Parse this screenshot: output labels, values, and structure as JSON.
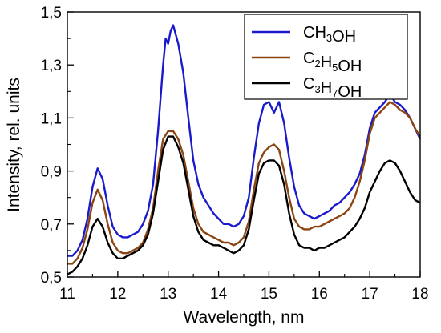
{
  "chart_data": {
    "type": "line",
    "xlabel": "Wavelength, nm",
    "ylabel": "Intensity, rel. units",
    "xlim": [
      11,
      18
    ],
    "ylim": [
      0.5,
      1.5
    ],
    "x_ticks": [
      "11",
      "12",
      "13",
      "14",
      "15",
      "16",
      "17",
      "18"
    ],
    "y_ticks": [
      "0,5",
      "0,7",
      "0,9",
      "1,1",
      "1,3",
      "1,5"
    ],
    "grid": false,
    "legend_position": "top-right",
    "series": [
      {
        "name": "CH3OH",
        "legend_parts": [
          [
            "CH",
            ""
          ],
          [
            "3",
            "sub"
          ],
          [
            "OH",
            ""
          ]
        ],
        "color": "#1a1acc",
        "points": [
          [
            11.0,
            0.58
          ],
          [
            11.1,
            0.58
          ],
          [
            11.2,
            0.6
          ],
          [
            11.3,
            0.64
          ],
          [
            11.4,
            0.72
          ],
          [
            11.5,
            0.84
          ],
          [
            11.6,
            0.91
          ],
          [
            11.7,
            0.87
          ],
          [
            11.8,
            0.77
          ],
          [
            11.9,
            0.69
          ],
          [
            12.0,
            0.66
          ],
          [
            12.1,
            0.65
          ],
          [
            12.2,
            0.65
          ],
          [
            12.3,
            0.66
          ],
          [
            12.4,
            0.67
          ],
          [
            12.5,
            0.7
          ],
          [
            12.6,
            0.75
          ],
          [
            12.7,
            0.85
          ],
          [
            12.8,
            1.05
          ],
          [
            12.9,
            1.3
          ],
          [
            12.95,
            1.4
          ],
          [
            13.0,
            1.38
          ],
          [
            13.05,
            1.43
          ],
          [
            13.1,
            1.45
          ],
          [
            13.2,
            1.38
          ],
          [
            13.3,
            1.27
          ],
          [
            13.4,
            1.1
          ],
          [
            13.5,
            0.94
          ],
          [
            13.6,
            0.85
          ],
          [
            13.7,
            0.8
          ],
          [
            13.8,
            0.77
          ],
          [
            13.9,
            0.74
          ],
          [
            14.0,
            0.72
          ],
          [
            14.1,
            0.7
          ],
          [
            14.2,
            0.7
          ],
          [
            14.3,
            0.69
          ],
          [
            14.4,
            0.7
          ],
          [
            14.5,
            0.73
          ],
          [
            14.6,
            0.8
          ],
          [
            14.7,
            0.95
          ],
          [
            14.8,
            1.08
          ],
          [
            14.9,
            1.15
          ],
          [
            15.0,
            1.16
          ],
          [
            15.1,
            1.12
          ],
          [
            15.2,
            1.16
          ],
          [
            15.3,
            1.08
          ],
          [
            15.4,
            0.95
          ],
          [
            15.5,
            0.84
          ],
          [
            15.6,
            0.77
          ],
          [
            15.7,
            0.74
          ],
          [
            15.8,
            0.73
          ],
          [
            15.9,
            0.72
          ],
          [
            16.0,
            0.73
          ],
          [
            16.1,
            0.74
          ],
          [
            16.2,
            0.75
          ],
          [
            16.3,
            0.77
          ],
          [
            16.4,
            0.78
          ],
          [
            16.5,
            0.8
          ],
          [
            16.6,
            0.82
          ],
          [
            16.7,
            0.85
          ],
          [
            16.8,
            0.89
          ],
          [
            16.9,
            0.96
          ],
          [
            17.0,
            1.06
          ],
          [
            17.1,
            1.12
          ],
          [
            17.2,
            1.14
          ],
          [
            17.3,
            1.16
          ],
          [
            17.4,
            1.19
          ],
          [
            17.5,
            1.16
          ],
          [
            17.6,
            1.15
          ],
          [
            17.7,
            1.13
          ],
          [
            17.8,
            1.1
          ],
          [
            17.9,
            1.06
          ],
          [
            18.0,
            1.02
          ]
        ]
      },
      {
        "name": "C2H5OH",
        "legend_parts": [
          [
            "C",
            ""
          ],
          [
            "2",
            "sub"
          ],
          [
            "H",
            ""
          ],
          [
            "5",
            "sub"
          ],
          [
            "OH",
            ""
          ]
        ],
        "color": "#8b4513",
        "points": [
          [
            11.0,
            0.55
          ],
          [
            11.1,
            0.55
          ],
          [
            11.2,
            0.57
          ],
          [
            11.3,
            0.61
          ],
          [
            11.4,
            0.68
          ],
          [
            11.5,
            0.78
          ],
          [
            11.6,
            0.83
          ],
          [
            11.7,
            0.79
          ],
          [
            11.8,
            0.7
          ],
          [
            11.9,
            0.63
          ],
          [
            12.0,
            0.6
          ],
          [
            12.1,
            0.59
          ],
          [
            12.2,
            0.59
          ],
          [
            12.3,
            0.6
          ],
          [
            12.4,
            0.61
          ],
          [
            12.5,
            0.63
          ],
          [
            12.6,
            0.68
          ],
          [
            12.7,
            0.76
          ],
          [
            12.8,
            0.9
          ],
          [
            12.9,
            1.02
          ],
          [
            13.0,
            1.05
          ],
          [
            13.1,
            1.05
          ],
          [
            13.2,
            1.02
          ],
          [
            13.3,
            0.96
          ],
          [
            13.4,
            0.86
          ],
          [
            13.5,
            0.76
          ],
          [
            13.6,
            0.7
          ],
          [
            13.7,
            0.67
          ],
          [
            13.8,
            0.66
          ],
          [
            13.9,
            0.65
          ],
          [
            14.0,
            0.64
          ],
          [
            14.1,
            0.63
          ],
          [
            14.2,
            0.63
          ],
          [
            14.3,
            0.62
          ],
          [
            14.4,
            0.63
          ],
          [
            14.5,
            0.65
          ],
          [
            14.6,
            0.71
          ],
          [
            14.7,
            0.83
          ],
          [
            14.8,
            0.93
          ],
          [
            14.9,
            0.97
          ],
          [
            15.0,
            0.99
          ],
          [
            15.1,
            1.0
          ],
          [
            15.2,
            0.98
          ],
          [
            15.3,
            0.9
          ],
          [
            15.4,
            0.8
          ],
          [
            15.5,
            0.72
          ],
          [
            15.6,
            0.69
          ],
          [
            15.7,
            0.68
          ],
          [
            15.8,
            0.68
          ],
          [
            15.9,
            0.69
          ],
          [
            16.0,
            0.69
          ],
          [
            16.1,
            0.7
          ],
          [
            16.2,
            0.71
          ],
          [
            16.3,
            0.72
          ],
          [
            16.4,
            0.73
          ],
          [
            16.5,
            0.74
          ],
          [
            16.6,
            0.76
          ],
          [
            16.7,
            0.8
          ],
          [
            16.8,
            0.86
          ],
          [
            16.9,
            0.94
          ],
          [
            17.0,
            1.04
          ],
          [
            17.1,
            1.1
          ],
          [
            17.2,
            1.12
          ],
          [
            17.3,
            1.14
          ],
          [
            17.4,
            1.16
          ],
          [
            17.5,
            1.15
          ],
          [
            17.6,
            1.13
          ],
          [
            17.7,
            1.12
          ],
          [
            17.8,
            1.1
          ],
          [
            17.9,
            1.06
          ],
          [
            18.0,
            1.03
          ]
        ]
      },
      {
        "name": "C3H7OH",
        "legend_parts": [
          [
            "C",
            ""
          ],
          [
            "3",
            "sub"
          ],
          [
            "H",
            ""
          ],
          [
            "7",
            "sub"
          ],
          [
            "OH",
            ""
          ]
        ],
        "color": "#000000",
        "points": [
          [
            11.0,
            0.51
          ],
          [
            11.1,
            0.52
          ],
          [
            11.2,
            0.54
          ],
          [
            11.3,
            0.57
          ],
          [
            11.4,
            0.62
          ],
          [
            11.5,
            0.69
          ],
          [
            11.6,
            0.72
          ],
          [
            11.7,
            0.69
          ],
          [
            11.8,
            0.63
          ],
          [
            11.9,
            0.59
          ],
          [
            12.0,
            0.57
          ],
          [
            12.1,
            0.57
          ],
          [
            12.2,
            0.58
          ],
          [
            12.3,
            0.59
          ],
          [
            12.4,
            0.6
          ],
          [
            12.5,
            0.62
          ],
          [
            12.6,
            0.66
          ],
          [
            12.7,
            0.74
          ],
          [
            12.8,
            0.86
          ],
          [
            12.9,
            0.98
          ],
          [
            13.0,
            1.03
          ],
          [
            13.1,
            1.03
          ],
          [
            13.2,
            0.99
          ],
          [
            13.3,
            0.93
          ],
          [
            13.4,
            0.83
          ],
          [
            13.5,
            0.73
          ],
          [
            13.6,
            0.67
          ],
          [
            13.7,
            0.64
          ],
          [
            13.8,
            0.63
          ],
          [
            13.9,
            0.62
          ],
          [
            14.0,
            0.62
          ],
          [
            14.1,
            0.61
          ],
          [
            14.2,
            0.6
          ],
          [
            14.3,
            0.59
          ],
          [
            14.4,
            0.6
          ],
          [
            14.5,
            0.62
          ],
          [
            14.6,
            0.68
          ],
          [
            14.7,
            0.79
          ],
          [
            14.8,
            0.89
          ],
          [
            14.9,
            0.93
          ],
          [
            15.0,
            0.94
          ],
          [
            15.1,
            0.94
          ],
          [
            15.2,
            0.92
          ],
          [
            15.3,
            0.85
          ],
          [
            15.4,
            0.74
          ],
          [
            15.5,
            0.66
          ],
          [
            15.6,
            0.62
          ],
          [
            15.7,
            0.61
          ],
          [
            15.8,
            0.61
          ],
          [
            15.9,
            0.6
          ],
          [
            16.0,
            0.61
          ],
          [
            16.1,
            0.61
          ],
          [
            16.2,
            0.62
          ],
          [
            16.3,
            0.63
          ],
          [
            16.4,
            0.64
          ],
          [
            16.5,
            0.65
          ],
          [
            16.6,
            0.67
          ],
          [
            16.7,
            0.69
          ],
          [
            16.8,
            0.72
          ],
          [
            16.9,
            0.76
          ],
          [
            17.0,
            0.82
          ],
          [
            17.1,
            0.86
          ],
          [
            17.2,
            0.9
          ],
          [
            17.3,
            0.93
          ],
          [
            17.4,
            0.94
          ],
          [
            17.5,
            0.93
          ],
          [
            17.6,
            0.9
          ],
          [
            17.7,
            0.86
          ],
          [
            17.8,
            0.82
          ],
          [
            17.9,
            0.79
          ],
          [
            18.0,
            0.78
          ]
        ]
      }
    ]
  }
}
